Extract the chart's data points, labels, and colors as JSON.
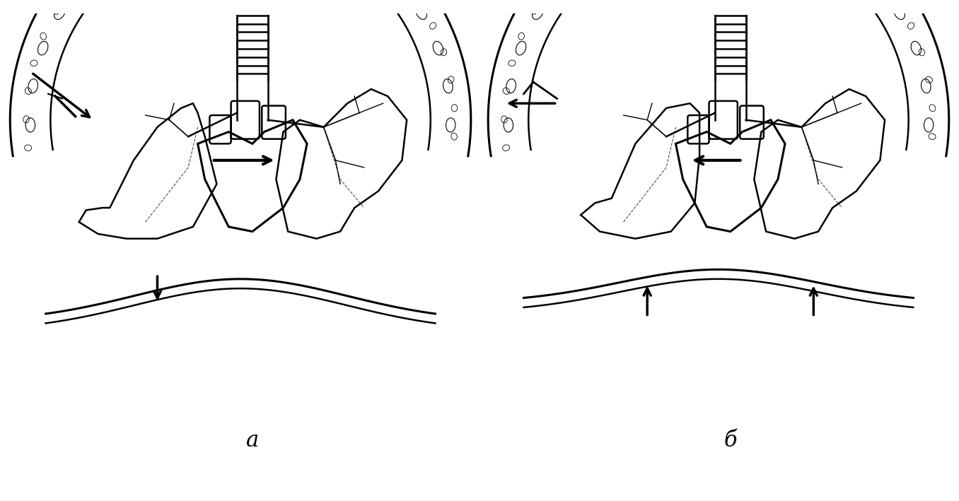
{
  "background_color": "#ffffff",
  "line_color": "#000000",
  "label_a": "a",
  "label_b": "б",
  "label_fontsize": 22,
  "label_fontstyle": "italic",
  "fig_width": 13.56,
  "fig_height": 7.09,
  "dpi": 100
}
